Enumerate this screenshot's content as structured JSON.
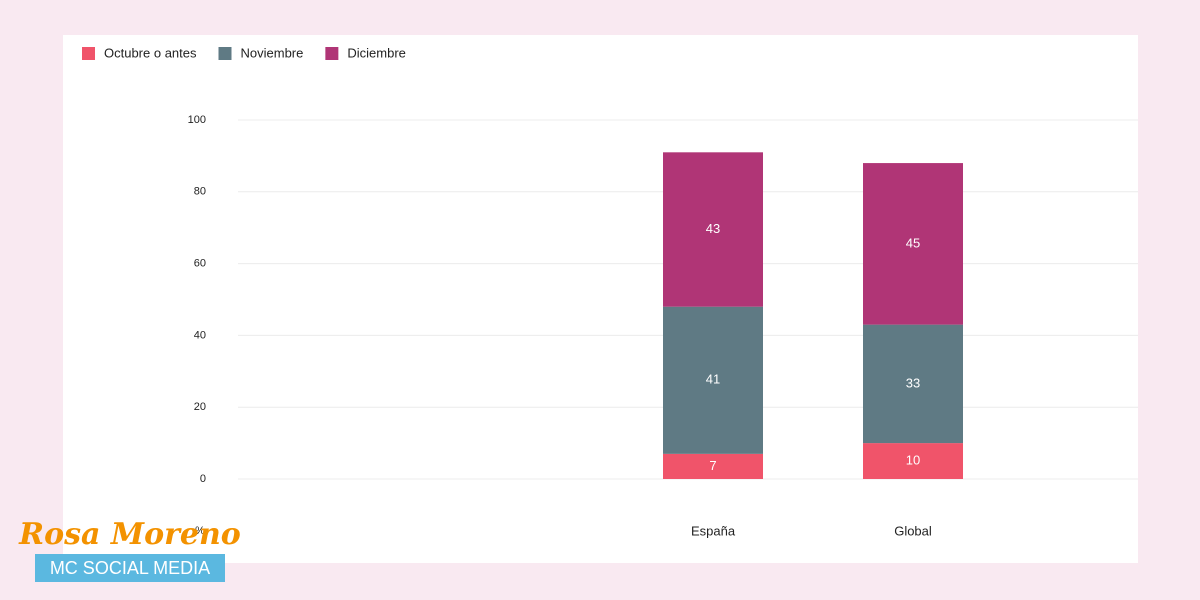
{
  "chart_data": {
    "type": "stacked-bar",
    "categories": [
      "España",
      "Global"
    ],
    "series": [
      {
        "name": "Octubre o antes",
        "color": "#f0546a",
        "values": [
          7,
          10
        ]
      },
      {
        "name": "Noviembre",
        "color": "#5f7a84",
        "values": [
          41,
          33
        ]
      },
      {
        "name": "Diciembre",
        "color": "#b03576",
        "values": [
          43,
          45
        ]
      }
    ],
    "y_label": "%",
    "ylim": [
      0,
      100
    ],
    "yticks": [
      0,
      20,
      40,
      60,
      80,
      100
    ],
    "grid": true,
    "legend": "top-left"
  },
  "logo": {
    "name": "Rosa Moreno",
    "tagline": "MC SOCIAL MEDIA"
  }
}
